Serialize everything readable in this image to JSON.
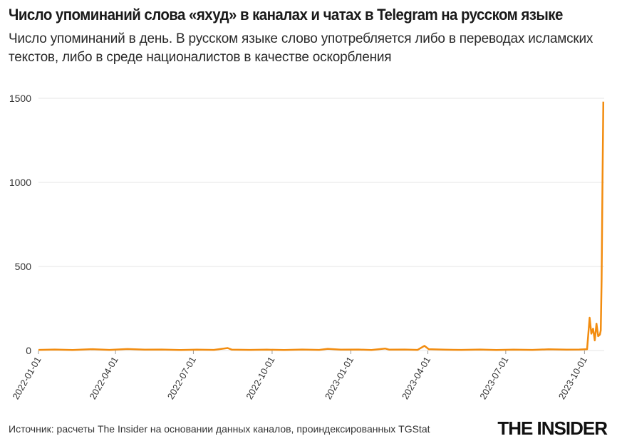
{
  "title": "Число упоминаний слова «яхуд» в каналах и чатах в Telegram на русском языке",
  "subtitle": "Число упоминаний в день. В русском языке слово употребляется либо в переводах исламских текстов, либо в среде националистов в качестве оскорбления",
  "source": "Источник: расчеты The Insider на основании данных каналов, проиндексированных TGStat",
  "logo": "THE INSIDER",
  "colors": {
    "line": "#f28c0f",
    "grid": "#e6e6e6",
    "axis_text": "#333333"
  },
  "chart_data": {
    "type": "line",
    "x_tick_labels": [
      "2022-01-01",
      "2022-04-01",
      "2022-07-01",
      "2022-10-01",
      "2023-01-01",
      "2023-04-01",
      "2023-07-01",
      "2023-10-01"
    ],
    "y_tick_labels": [
      "0",
      "500",
      "1000",
      "1500"
    ],
    "ylim": [
      0,
      1500
    ],
    "xlim": [
      "2022-01-01",
      "2023-10-24"
    ],
    "grid": true,
    "series": [
      {
        "points": [
          [
            "2022-01-01",
            4
          ],
          [
            "2022-01-20",
            6
          ],
          [
            "2022-02-10",
            3
          ],
          [
            "2022-03-05",
            8
          ],
          [
            "2022-03-25",
            4
          ],
          [
            "2022-04-15",
            9
          ],
          [
            "2022-05-05",
            5
          ],
          [
            "2022-05-25",
            6
          ],
          [
            "2022-06-15",
            3
          ],
          [
            "2022-07-05",
            5
          ],
          [
            "2022-07-25",
            4
          ],
          [
            "2022-08-10",
            15
          ],
          [
            "2022-08-15",
            5
          ],
          [
            "2022-09-05",
            4
          ],
          [
            "2022-09-25",
            5
          ],
          [
            "2022-10-15",
            3
          ],
          [
            "2022-11-05",
            6
          ],
          [
            "2022-11-25",
            4
          ],
          [
            "2022-12-05",
            10
          ],
          [
            "2022-12-20",
            5
          ],
          [
            "2023-01-10",
            6
          ],
          [
            "2023-01-25",
            3
          ],
          [
            "2023-02-10",
            12
          ],
          [
            "2023-02-15",
            5
          ],
          [
            "2023-03-05",
            6
          ],
          [
            "2023-03-20",
            4
          ],
          [
            "2023-03-28",
            28
          ],
          [
            "2023-04-02",
            8
          ],
          [
            "2023-04-20",
            5
          ],
          [
            "2023-05-10",
            4
          ],
          [
            "2023-06-01",
            6
          ],
          [
            "2023-06-20",
            3
          ],
          [
            "2023-07-10",
            5
          ],
          [
            "2023-08-01",
            4
          ],
          [
            "2023-08-20",
            7
          ],
          [
            "2023-09-10",
            5
          ],
          [
            "2023-09-25",
            6
          ],
          [
            "2023-10-04",
            8
          ],
          [
            "2023-10-07",
            195
          ],
          [
            "2023-10-09",
            100
          ],
          [
            "2023-10-11",
            130
          ],
          [
            "2023-10-13",
            60
          ],
          [
            "2023-10-15",
            160
          ],
          [
            "2023-10-17",
            85
          ],
          [
            "2023-10-19",
            95
          ],
          [
            "2023-10-20",
            120
          ],
          [
            "2023-10-21",
            420
          ],
          [
            "2023-10-22",
            980
          ],
          [
            "2023-10-23",
            1480
          ]
        ]
      }
    ]
  }
}
